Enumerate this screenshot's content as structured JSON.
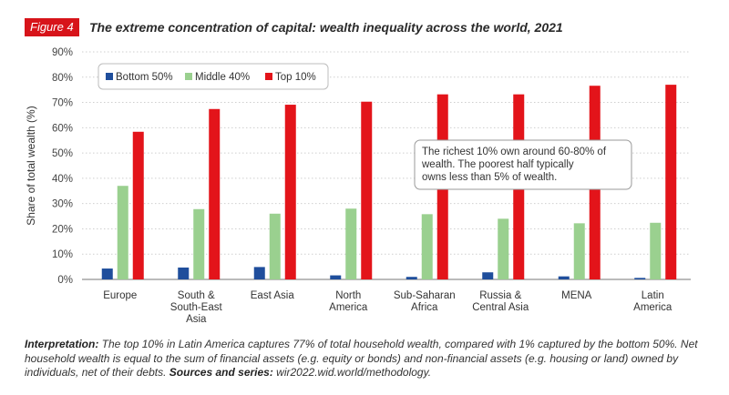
{
  "figure": {
    "label": "Figure 4",
    "title": "The extreme concentration of capital: wealth inequality across the world, 2021"
  },
  "chart_data": {
    "type": "bar",
    "categories": [
      [
        "Europe"
      ],
      [
        "South &",
        "South-East",
        "Asia"
      ],
      [
        "East Asia"
      ],
      [
        "North",
        "America"
      ],
      [
        "Sub-Saharan",
        "Africa"
      ],
      [
        "Russia &",
        "Central Asia"
      ],
      [
        "MENA"
      ],
      [
        "Latin",
        "America"
      ]
    ],
    "series": [
      {
        "name": "Bottom 50%",
        "color": "#1f4e9c",
        "values": [
          4.3,
          4.7,
          4.9,
          1.6,
          1.0,
          2.8,
          1.2,
          0.6
        ]
      },
      {
        "name": "Middle 40%",
        "color": "#9ad08f",
        "values": [
          37.0,
          27.8,
          26.0,
          28.0,
          25.8,
          24.0,
          22.2,
          22.4
        ]
      },
      {
        "name": "Top 10%",
        "color": "#e3141a",
        "values": [
          58.4,
          67.4,
          69.1,
          70.3,
          73.2,
          73.2,
          76.6,
          77.0
        ]
      }
    ],
    "ylabel": "Share of total wealth (%)",
    "ylim": [
      0,
      90
    ],
    "yticks": [
      0,
      10,
      20,
      30,
      40,
      50,
      60,
      70,
      80,
      90
    ],
    "ytick_suffix": "%",
    "grid": true,
    "legend_position": "top-left",
    "annotation": "The richest 10% own around 60-80% of wealth. The poorest half typically owns less than 5% of wealth."
  },
  "interpretation": {
    "label": "Interpretation:",
    "text": " The top 10% in Latin America captures 77% of total household wealth, compared with 1% captured by the bottom 50%. Net household wealth is equal to the sum of financial assets (e.g. equity or bonds) and non-financial assets (e.g. housing or land) owned by individuals, net of their debts.",
    "sources_label": "Sources and series:",
    "sources_text": " wir2022.wid.world/methodology."
  }
}
